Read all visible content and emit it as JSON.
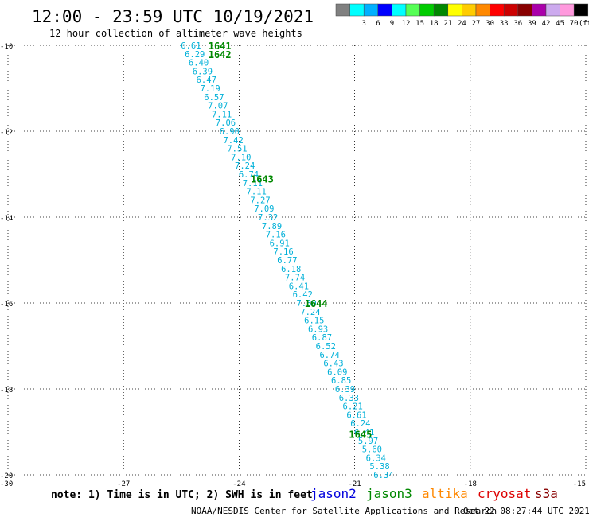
{
  "chart_data": {
    "type": "scatter",
    "title": "12:00 - 23:59 UTC 10/19/2021",
    "subtitle": "12 hour collection of altimeter wave heights",
    "xlim": [
      -30,
      -15
    ],
    "ylim": [
      -20,
      -10
    ],
    "x_ticks": [
      {
        "value": -30,
        "label": "-30"
      },
      {
        "value": -27,
        "label": "-27"
      },
      {
        "value": -24,
        "label": "-24"
      },
      {
        "value": -21,
        "label": "-21"
      },
      {
        "value": -18,
        "label": "-18"
      },
      {
        "value": -15,
        "label": "-15"
      }
    ],
    "y_ticks": [
      {
        "value": -10,
        "label": "-10"
      },
      {
        "value": -12,
        "label": "-12"
      },
      {
        "value": -14,
        "label": "-14"
      },
      {
        "value": -16,
        "label": "-16"
      },
      {
        "value": -18,
        "label": "-18"
      },
      {
        "value": -20,
        "label": "-20"
      }
    ],
    "grid": true,
    "legend": {
      "unit": "(ft)",
      "bins": [
        {
          "label": "",
          "color": "#808080"
        },
        {
          "label": "3",
          "color": "#00ffff"
        },
        {
          "label": "6",
          "color": "#00b0ff"
        },
        {
          "label": "9",
          "color": "#0000ff"
        },
        {
          "label": "12",
          "color": "#00ffff"
        },
        {
          "label": "15",
          "color": "#55ff55"
        },
        {
          "label": "18",
          "color": "#00cc00"
        },
        {
          "label": "21",
          "color": "#008800"
        },
        {
          "label": "24",
          "color": "#ffff00"
        },
        {
          "label": "27",
          "color": "#ffcc00"
        },
        {
          "label": "30",
          "color": "#ff8800"
        },
        {
          "label": "33",
          "color": "#ff0000"
        },
        {
          "label": "36",
          "color": "#cc0000"
        },
        {
          "label": "39",
          "color": "#880000"
        },
        {
          "label": "42",
          "color": "#aa00aa"
        },
        {
          "label": "45",
          "color": "#ccaaee"
        },
        {
          "label": "70",
          "color": "#ff99dd"
        },
        {
          "label": "",
          "color": "#000000"
        }
      ]
    },
    "series": [
      {
        "name": "jason3",
        "points": [
          {
            "x": -25.25,
            "y": -10.0,
            "swh": "6.61"
          },
          {
            "x": -25.15,
            "y": -10.2,
            "swh": "6.29"
          },
          {
            "x": -25.05,
            "y": -10.4,
            "swh": "6.40"
          },
          {
            "x": -24.95,
            "y": -10.6,
            "swh": "6.39"
          },
          {
            "x": -24.85,
            "y": -10.8,
            "swh": "6.47"
          },
          {
            "x": -24.75,
            "y": -11.0,
            "swh": "7.19"
          },
          {
            "x": -24.65,
            "y": -11.2,
            "swh": "6.57"
          },
          {
            "x": -24.55,
            "y": -11.4,
            "swh": "7.07"
          },
          {
            "x": -24.45,
            "y": -11.6,
            "swh": "7.11"
          },
          {
            "x": -24.35,
            "y": -11.8,
            "swh": "7.06"
          },
          {
            "x": -24.25,
            "y": -12.0,
            "swh": "6.90"
          },
          {
            "x": -24.15,
            "y": -12.2,
            "swh": "7.42"
          },
          {
            "x": -24.05,
            "y": -12.4,
            "swh": "7.51"
          },
          {
            "x": -23.95,
            "y": -12.6,
            "swh": "7.10"
          },
          {
            "x": -23.85,
            "y": -12.8,
            "swh": "7.24"
          },
          {
            "x": -23.75,
            "y": -13.0,
            "swh": "6.74"
          },
          {
            "x": -23.65,
            "y": -13.2,
            "swh": "7.11"
          },
          {
            "x": -23.55,
            "y": -13.4,
            "swh": "7.11"
          },
          {
            "x": -23.45,
            "y": -13.6,
            "swh": "7.27"
          },
          {
            "x": -23.35,
            "y": -13.8,
            "swh": "7.09"
          },
          {
            "x": -23.25,
            "y": -14.0,
            "swh": "7.32"
          },
          {
            "x": -23.15,
            "y": -14.2,
            "swh": "7.89"
          },
          {
            "x": -23.05,
            "y": -14.4,
            "swh": "7.16"
          },
          {
            "x": -22.95,
            "y": -14.6,
            "swh": "6.91"
          },
          {
            "x": -22.85,
            "y": -14.8,
            "swh": "7.16"
          },
          {
            "x": -22.75,
            "y": -15.0,
            "swh": "6.77"
          },
          {
            "x": -22.65,
            "y": -15.2,
            "swh": "6.18"
          },
          {
            "x": -22.55,
            "y": -15.4,
            "swh": "7.74"
          },
          {
            "x": -22.45,
            "y": -15.6,
            "swh": "6.41"
          },
          {
            "x": -22.35,
            "y": -15.8,
            "swh": "6.42"
          },
          {
            "x": -22.25,
            "y": -16.0,
            "swh": "7.30"
          },
          {
            "x": -22.15,
            "y": -16.2,
            "swh": "7.24"
          },
          {
            "x": -22.05,
            "y": -16.4,
            "swh": "6.15"
          },
          {
            "x": -21.95,
            "y": -16.6,
            "swh": "6.93"
          },
          {
            "x": -21.85,
            "y": -16.8,
            "swh": "6.87"
          },
          {
            "x": -21.75,
            "y": -17.0,
            "swh": "6.52"
          },
          {
            "x": -21.65,
            "y": -17.2,
            "swh": "6.74"
          },
          {
            "x": -21.55,
            "y": -17.4,
            "swh": "6.43"
          },
          {
            "x": -21.45,
            "y": -17.6,
            "swh": "6.09"
          },
          {
            "x": -21.35,
            "y": -17.8,
            "swh": "6.85"
          },
          {
            "x": -21.25,
            "y": -18.0,
            "swh": "6.39"
          },
          {
            "x": -21.15,
            "y": -18.2,
            "swh": "6.33"
          },
          {
            "x": -21.05,
            "y": -18.4,
            "swh": "6.21"
          },
          {
            "x": -20.95,
            "y": -18.6,
            "swh": "6.61"
          },
          {
            "x": -20.85,
            "y": -18.8,
            "swh": "6.24"
          },
          {
            "x": -20.75,
            "y": -19.0,
            "swh": "6.41"
          },
          {
            "x": -20.65,
            "y": -19.2,
            "swh": "5.97"
          },
          {
            "x": -20.55,
            "y": -19.4,
            "swh": "5.60"
          },
          {
            "x": -20.45,
            "y": -19.6,
            "swh": "6.34"
          },
          {
            "x": -20.35,
            "y": -19.8,
            "swh": "5.38"
          },
          {
            "x": -20.25,
            "y": -20.0,
            "swh": "6.34"
          }
        ]
      }
    ],
    "time_labels": [
      {
        "x": -24.5,
        "y": -10.0,
        "label": "1641"
      },
      {
        "x": -24.5,
        "y": -10.2,
        "label": "1642"
      },
      {
        "x": -23.4,
        "y": -13.1,
        "label": "1643"
      },
      {
        "x": -22.0,
        "y": -16.0,
        "label": "1644"
      },
      {
        "x": -20.85,
        "y": -19.05,
        "label": "1645"
      }
    ],
    "satellites": [
      {
        "name": "jason2",
        "color": "#0000dd"
      },
      {
        "name": "jason3",
        "color": "#008800"
      },
      {
        "name": "altika",
        "color": "#ff8800"
      },
      {
        "name": "cryosat",
        "color": "#dd0000"
      },
      {
        "name": "s3a",
        "color": "#880000"
      }
    ],
    "note": "note: 1) Time is in UTC; 2) SWH is in feet",
    "credit": "NOAA/NESDIS Center for Satellite Applications and Research",
    "timestamp": "Oct 22 08:27:44 UTC 2021",
    "colors": {
      "point_text": "#00b0d8",
      "time_text": "#008800",
      "grid": "#000000"
    }
  }
}
